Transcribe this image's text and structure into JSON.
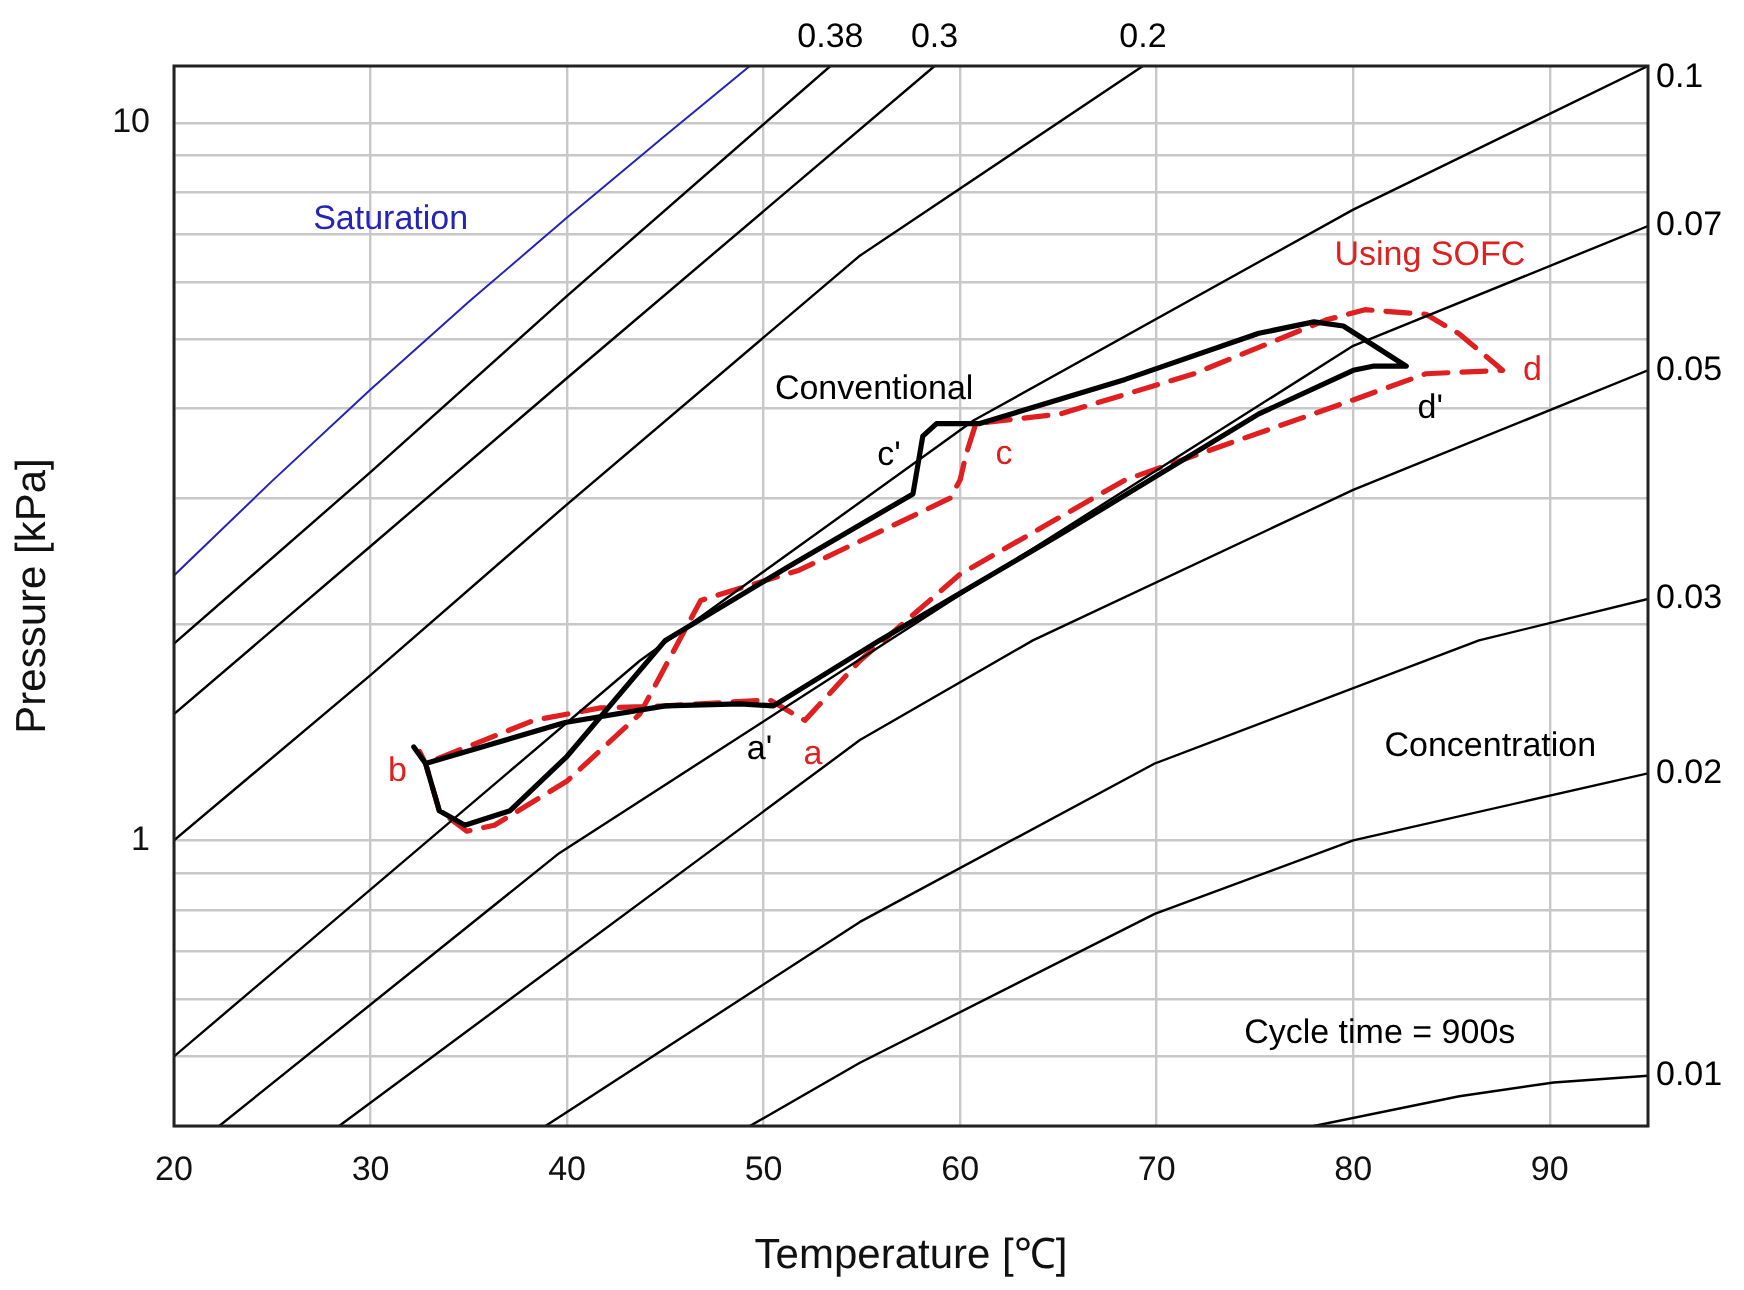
{
  "chart_data": {
    "type": "line",
    "xlabel": "Temperature [℃]",
    "ylabel": "Pressure [kPa]",
    "xlim": [
      20,
      95
    ],
    "xticks": [
      20,
      30,
      40,
      50,
      60,
      70,
      80,
      90
    ],
    "ylim": [
      0.4,
      12
    ],
    "log": "y",
    "yticks": [
      {
        "value": 0.4,
        "label": null
      },
      {
        "value": 0.5,
        "label": null
      },
      {
        "value": 0.6,
        "label": null
      },
      {
        "value": 0.7,
        "label": null
      },
      {
        "value": 0.8,
        "label": null
      },
      {
        "value": 0.9,
        "label": null
      },
      1,
      {
        "value": 2,
        "label": null
      },
      {
        "value": 3,
        "label": null
      },
      {
        "value": 4,
        "label": null
      },
      {
        "value": 5,
        "label": null
      },
      {
        "value": 6,
        "label": null
      },
      {
        "value": 7,
        "label": null
      },
      {
        "value": 8,
        "label": null
      },
      {
        "value": 9,
        "label": null
      },
      10
    ],
    "grid": true,
    "legend": false,
    "marker": "none",
    "series": [
      {
        "name": "Saturation",
        "color": "#2424b8",
        "x": [
          20,
          25,
          30,
          35,
          40,
          45,
          49.3
        ],
        "values": [
          2.34,
          3.17,
          4.25,
          5.63,
          7.38,
          9.6,
          12
        ]
      },
      {
        "name": "0.38",
        "color": "#000000",
        "x": [
          20,
          30,
          40,
          53.4
        ],
        "values": [
          1.88,
          3.26,
          5.74,
          12
        ]
      },
      {
        "name": "0.3",
        "color": "#000000",
        "x": [
          20,
          30,
          40,
          58.7
        ],
        "values": [
          1.5,
          2.57,
          4.41,
          12
        ]
      },
      {
        "name": "0.2",
        "color": "#000000",
        "x": [
          20,
          30,
          40,
          54.9,
          69.3
        ],
        "values": [
          1.0,
          1.7,
          2.94,
          6.53,
          12
        ]
      },
      {
        "name": "0.1",
        "color": "#000000",
        "x": [
          20,
          43.7,
          60.7,
          80,
          95
        ],
        "values": [
          0.5,
          1.78,
          3.85,
          7.57,
          12
        ]
      },
      {
        "name": "0.07",
        "color": "#000000",
        "x": [
          22.3,
          39.6,
          60,
          80,
          95
        ],
        "values": [
          0.4,
          0.96,
          2.2,
          4.89,
          7.18
        ]
      },
      {
        "name": "0.05",
        "color": "#000000",
        "x": [
          28.4,
          54.9,
          63.7,
          80,
          95
        ],
        "values": [
          0.4,
          1.38,
          1.9,
          3.08,
          4.52
        ]
      },
      {
        "name": "0.03",
        "color": "#000000",
        "x": [
          38.9,
          54.9,
          69.9,
          86.4,
          95
        ],
        "values": [
          0.4,
          0.77,
          1.28,
          1.9,
          2.17
        ]
      },
      {
        "name": "0.02",
        "color": "#000000",
        "x": [
          49.3,
          54.9,
          69.9,
          80,
          95
        ],
        "values": [
          0.4,
          0.49,
          0.79,
          1.0,
          1.24
        ]
      },
      {
        "name": "0.01",
        "color": "#000000",
        "x": [
          78,
          85.4,
          90.2,
          95
        ],
        "values": [
          0.4,
          0.44,
          0.46,
          0.47
        ]
      },
      {
        "name": "Conventional",
        "color": "#000000",
        "x": [
          32.2,
          32.8,
          33.5,
          34.8,
          37.1,
          40,
          45,
          51.3,
          57.6,
          58.1,
          58.8,
          61,
          68.4,
          75.2,
          78,
          79.5,
          82.7,
          81,
          80,
          75.2,
          65.1,
          55.9,
          50.5,
          48.8,
          45,
          39.9,
          32.8
        ],
        "values": [
          1.35,
          1.28,
          1.1,
          1.05,
          1.1,
          1.31,
          1.9,
          2.41,
          3.04,
          3.66,
          3.81,
          3.81,
          4.39,
          5.09,
          5.28,
          5.21,
          4.58,
          4.58,
          4.52,
          3.93,
          2.67,
          1.9,
          1.54,
          1.55,
          1.54,
          1.46,
          1.28
        ]
      },
      {
        "name": "Using SOFC",
        "color": "#e02020",
        "line_style": "dashed",
        "x": [
          32.5,
          32.8,
          33.5,
          34.9,
          36.3,
          40,
          43.7,
          46.8,
          51.8,
          59.5,
          60,
          60.3,
          60.8,
          65.1,
          71.9,
          78.6,
          80.6,
          83.7,
          85.4,
          87.6,
          83.7,
          80,
          68.4,
          60,
          54.9,
          52.1,
          50.3,
          45,
          41.7,
          38.3,
          32.8
        ],
        "values": [
          1.33,
          1.28,
          1.1,
          1.03,
          1.05,
          1.21,
          1.5,
          2.16,
          2.38,
          3.0,
          3.18,
          3.45,
          3.81,
          3.93,
          4.47,
          5.31,
          5.49,
          5.41,
          5.08,
          4.52,
          4.47,
          4.11,
          3.18,
          2.35,
          1.78,
          1.47,
          1.57,
          1.54,
          1.53,
          1.47,
          1.28
        ]
      }
    ],
    "annotations": [
      {
        "text": "b",
        "x": 32.8,
        "y": 1.28
      },
      {
        "text": "a'",
        "x": 50.5,
        "y": 1.54
      },
      {
        "text": "a",
        "x": 52.1,
        "y": 1.47
      },
      {
        "text": "c'",
        "x": 57.6,
        "y": 3.04
      },
      {
        "text": "c",
        "x": 60.3,
        "y": 3.45
      },
      {
        "text": "d'",
        "x": 82.7,
        "y": 4.58
      },
      {
        "text": "d",
        "x": 87.6,
        "y": 4.52
      },
      "Concentration",
      "Cycle time = 900s"
    ]
  }
}
